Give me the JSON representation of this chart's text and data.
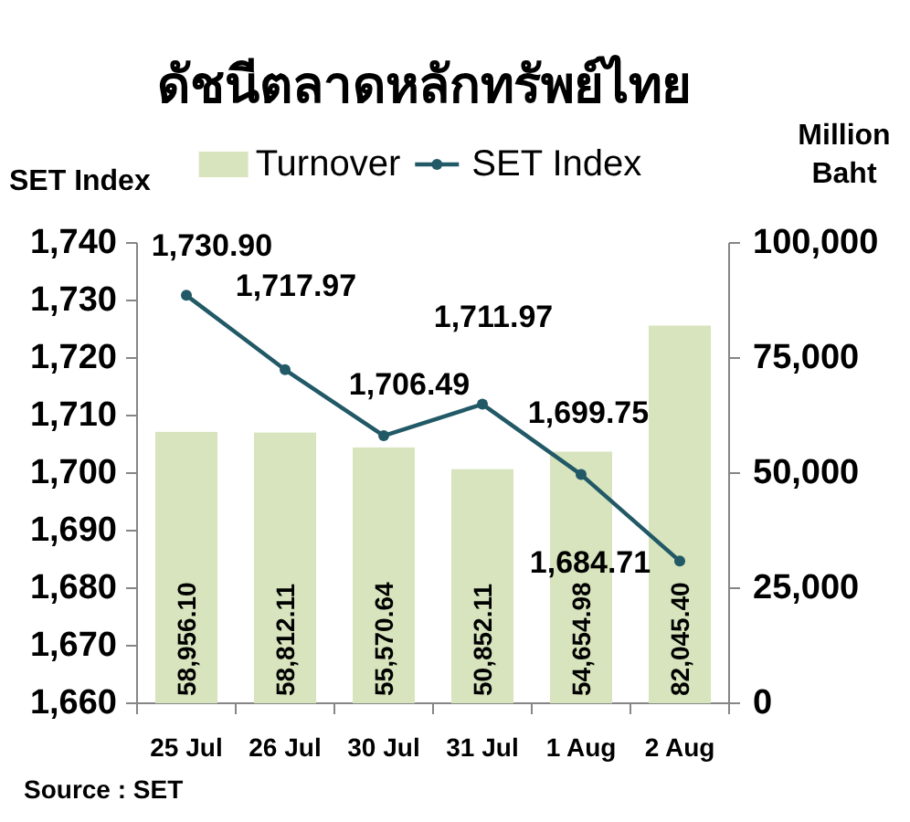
{
  "chart_data": {
    "type": "bar",
    "title": "ดัชนีตลาดหลักทรัพย์ไทย",
    "categories": [
      "25 Jul",
      "26 Jul",
      "30 Jul",
      "31 Jul",
      "1 Aug",
      "2 Aug"
    ],
    "series": [
      {
        "name": "Turnover",
        "axis": "y2",
        "color": "#d7e4bd",
        "values": [
          58956.1,
          58812.11,
          55570.64,
          50852.11,
          54654.98,
          82045.4
        ],
        "value_labels": [
          "58,956.10",
          "58,812.11",
          "55,570.64",
          "50,852.11",
          "54,654.98",
          "82,045.40"
        ]
      },
      {
        "name": "SET Index",
        "type": "line",
        "color": "#215967",
        "values": [
          1730.9,
          1717.97,
          1706.49,
          1711.97,
          1699.75,
          1684.71
        ],
        "value_labels": [
          "1,730.90",
          "1,717.97",
          "1,706.49",
          "1,711.97",
          "1,699.75",
          "1,684.71"
        ]
      }
    ],
    "ylabel": "SET Index",
    "y2label": "Million Baht",
    "ylim": [
      1660,
      1740
    ],
    "yticks": [
      {
        "value": 1660,
        "label": "1,660"
      },
      {
        "value": 1670,
        "label": "1,670"
      },
      {
        "value": 1680,
        "label": "1,680"
      },
      {
        "value": 1690,
        "label": "1,690"
      },
      {
        "value": 1700,
        "label": "1,700"
      },
      {
        "value": 1710,
        "label": "1,710"
      },
      {
        "value": 1720,
        "label": "1,720"
      },
      {
        "value": 1730,
        "label": "1,730"
      },
      {
        "value": 1740,
        "label": "1,740"
      }
    ],
    "y2lim": [
      0,
      100000
    ],
    "y2ticks": [
      0,
      {
        "value": 25000,
        "label": "25,000"
      },
      {
        "value": 50000,
        "label": "50,000"
      },
      {
        "value": 75000,
        "label": "75,000"
      },
      {
        "value": 100000,
        "label": "100,000"
      }
    ],
    "legend": "top",
    "marker": "circle",
    "annotations": [
      "Source : SET"
    ]
  }
}
